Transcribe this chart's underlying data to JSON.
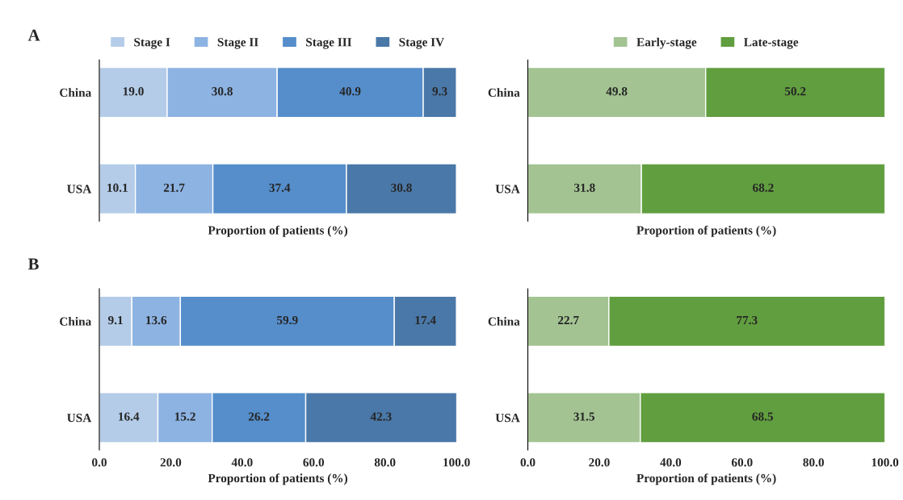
{
  "chart_data": [
    {
      "type": "bar",
      "orientation": "horizontal",
      "stacked": true,
      "categories": [
        "China",
        "USA"
      ],
      "xlabel": "Proportion of patients (%)",
      "annotations": [
        "A"
      ],
      "xlim": [
        0,
        100
      ],
      "tick_labels": "y",
      "legend": "top",
      "series": [
        {
          "name": "Stage I",
          "color": "#b4cce8",
          "values": [
            19.0,
            10.1
          ],
          "value_labels": [
            "19.0",
            "10.1"
          ]
        },
        {
          "name": "Stage II",
          "color": "#8db3e2",
          "values": [
            30.8,
            21.7
          ],
          "value_labels": [
            "30.8",
            "21.7"
          ]
        },
        {
          "name": "Stage III",
          "color": "#558ecb",
          "values": [
            40.9,
            37.4
          ],
          "value_labels": [
            "40.9",
            "37.4"
          ]
        },
        {
          "name": "Stage IV",
          "color": "#4a78a8",
          "values": [
            9.3,
            30.8
          ],
          "value_labels": [
            "9.3",
            "30.8"
          ]
        }
      ]
    },
    {
      "type": "bar",
      "orientation": "horizontal",
      "stacked": true,
      "categories": [
        "China",
        "USA"
      ],
      "xlabel": "Proportion of patients (%)",
      "xlim": [
        0,
        100
      ],
      "tick_labels": "y",
      "legend": "top",
      "series": [
        {
          "name": "Early-stage",
          "color": "#a3c492",
          "values": [
            49.8,
            31.8
          ],
          "value_labels": [
            "49.8",
            "31.8"
          ]
        },
        {
          "name": "Late-stage",
          "color": "#619e3f",
          "values": [
            50.2,
            68.2
          ],
          "value_labels": [
            "50.2",
            "68.2"
          ]
        }
      ]
    },
    {
      "type": "bar",
      "orientation": "horizontal",
      "stacked": true,
      "categories": [
        "China",
        "USA"
      ],
      "xlabel": "Proportion of patients (%)",
      "annotations": [
        "B"
      ],
      "xlim": [
        0,
        100
      ],
      "xticks": [
        {
          "value": 0,
          "label": "0.0"
        },
        {
          "value": 20,
          "label": "20.0"
        },
        {
          "value": 40,
          "label": "40.0"
        },
        {
          "value": 60,
          "label": "60.0"
        },
        {
          "value": 80,
          "label": "80.0"
        },
        {
          "value": 100,
          "label": "100.0"
        }
      ],
      "series": [
        {
          "color": "#b4cce8",
          "values": [
            9.1,
            16.4
          ],
          "value_labels": [
            "9.1",
            "16.4"
          ]
        },
        {
          "color": "#8db3e2",
          "values": [
            13.6,
            15.2
          ],
          "value_labels": [
            "13.6",
            "15.2"
          ]
        },
        {
          "color": "#558ecb",
          "values": [
            59.9,
            26.2
          ],
          "value_labels": [
            "59.9",
            "26.2"
          ]
        },
        {
          "color": "#4a78a8",
          "values": [
            17.4,
            42.3
          ],
          "value_labels": [
            "17.4",
            "42.3"
          ]
        }
      ]
    },
    {
      "type": "bar",
      "orientation": "horizontal",
      "stacked": true,
      "categories": [
        "China",
        "USA"
      ],
      "xlabel": "Proportion of patients (%)",
      "xlim": [
        0,
        100
      ],
      "xticks": [
        {
          "value": 0,
          "label": "0.0"
        },
        {
          "value": 20,
          "label": "20.0"
        },
        {
          "value": 40,
          "label": "40.0"
        },
        {
          "value": 60,
          "label": "60.0"
        },
        {
          "value": 80,
          "label": "80.0"
        },
        {
          "value": 100,
          "label": "100.0"
        }
      ],
      "series": [
        {
          "color": "#a3c492",
          "values": [
            22.7,
            31.5
          ],
          "value_labels": [
            "22.7",
            "31.5"
          ]
        },
        {
          "color": "#619e3f",
          "values": [
            77.3,
            68.5
          ],
          "value_labels": [
            "77.3",
            "68.5"
          ]
        }
      ]
    }
  ]
}
